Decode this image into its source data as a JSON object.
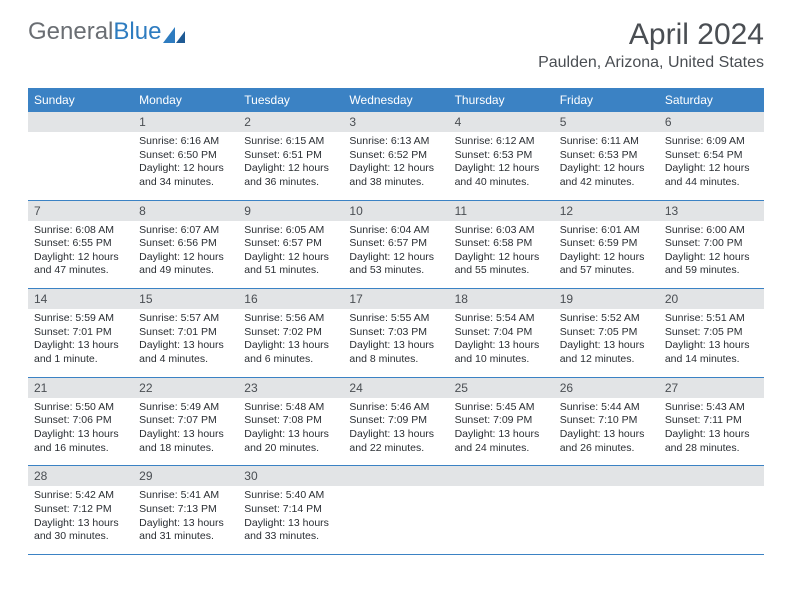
{
  "logo": {
    "part1": "General",
    "part2": "Blue"
  },
  "title": "April 2024",
  "location": "Paulden, Arizona, United States",
  "colors": {
    "header_bg": "#3b82c4",
    "header_text": "#ffffff",
    "daynum_bg": "#e2e4e6",
    "text": "#2a2e33",
    "title_text": "#4a4e53",
    "logo_gray": "#6a6e73",
    "logo_blue": "#2e7cc0",
    "divider": "#3b82c4"
  },
  "day_headers": [
    "Sunday",
    "Monday",
    "Tuesday",
    "Wednesday",
    "Thursday",
    "Friday",
    "Saturday"
  ],
  "weeks": [
    [
      {
        "num": "",
        "sunrise": "",
        "sunset": "",
        "daylight": ""
      },
      {
        "num": "1",
        "sunrise": "Sunrise: 6:16 AM",
        "sunset": "Sunset: 6:50 PM",
        "daylight": "Daylight: 12 hours and 34 minutes."
      },
      {
        "num": "2",
        "sunrise": "Sunrise: 6:15 AM",
        "sunset": "Sunset: 6:51 PM",
        "daylight": "Daylight: 12 hours and 36 minutes."
      },
      {
        "num": "3",
        "sunrise": "Sunrise: 6:13 AM",
        "sunset": "Sunset: 6:52 PM",
        "daylight": "Daylight: 12 hours and 38 minutes."
      },
      {
        "num": "4",
        "sunrise": "Sunrise: 6:12 AM",
        "sunset": "Sunset: 6:53 PM",
        "daylight": "Daylight: 12 hours and 40 minutes."
      },
      {
        "num": "5",
        "sunrise": "Sunrise: 6:11 AM",
        "sunset": "Sunset: 6:53 PM",
        "daylight": "Daylight: 12 hours and 42 minutes."
      },
      {
        "num": "6",
        "sunrise": "Sunrise: 6:09 AM",
        "sunset": "Sunset: 6:54 PM",
        "daylight": "Daylight: 12 hours and 44 minutes."
      }
    ],
    [
      {
        "num": "7",
        "sunrise": "Sunrise: 6:08 AM",
        "sunset": "Sunset: 6:55 PM",
        "daylight": "Daylight: 12 hours and 47 minutes."
      },
      {
        "num": "8",
        "sunrise": "Sunrise: 6:07 AM",
        "sunset": "Sunset: 6:56 PM",
        "daylight": "Daylight: 12 hours and 49 minutes."
      },
      {
        "num": "9",
        "sunrise": "Sunrise: 6:05 AM",
        "sunset": "Sunset: 6:57 PM",
        "daylight": "Daylight: 12 hours and 51 minutes."
      },
      {
        "num": "10",
        "sunrise": "Sunrise: 6:04 AM",
        "sunset": "Sunset: 6:57 PM",
        "daylight": "Daylight: 12 hours and 53 minutes."
      },
      {
        "num": "11",
        "sunrise": "Sunrise: 6:03 AM",
        "sunset": "Sunset: 6:58 PM",
        "daylight": "Daylight: 12 hours and 55 minutes."
      },
      {
        "num": "12",
        "sunrise": "Sunrise: 6:01 AM",
        "sunset": "Sunset: 6:59 PM",
        "daylight": "Daylight: 12 hours and 57 minutes."
      },
      {
        "num": "13",
        "sunrise": "Sunrise: 6:00 AM",
        "sunset": "Sunset: 7:00 PM",
        "daylight": "Daylight: 12 hours and 59 minutes."
      }
    ],
    [
      {
        "num": "14",
        "sunrise": "Sunrise: 5:59 AM",
        "sunset": "Sunset: 7:01 PM",
        "daylight": "Daylight: 13 hours and 1 minute."
      },
      {
        "num": "15",
        "sunrise": "Sunrise: 5:57 AM",
        "sunset": "Sunset: 7:01 PM",
        "daylight": "Daylight: 13 hours and 4 minutes."
      },
      {
        "num": "16",
        "sunrise": "Sunrise: 5:56 AM",
        "sunset": "Sunset: 7:02 PM",
        "daylight": "Daylight: 13 hours and 6 minutes."
      },
      {
        "num": "17",
        "sunrise": "Sunrise: 5:55 AM",
        "sunset": "Sunset: 7:03 PM",
        "daylight": "Daylight: 13 hours and 8 minutes."
      },
      {
        "num": "18",
        "sunrise": "Sunrise: 5:54 AM",
        "sunset": "Sunset: 7:04 PM",
        "daylight": "Daylight: 13 hours and 10 minutes."
      },
      {
        "num": "19",
        "sunrise": "Sunrise: 5:52 AM",
        "sunset": "Sunset: 7:05 PM",
        "daylight": "Daylight: 13 hours and 12 minutes."
      },
      {
        "num": "20",
        "sunrise": "Sunrise: 5:51 AM",
        "sunset": "Sunset: 7:05 PM",
        "daylight": "Daylight: 13 hours and 14 minutes."
      }
    ],
    [
      {
        "num": "21",
        "sunrise": "Sunrise: 5:50 AM",
        "sunset": "Sunset: 7:06 PM",
        "daylight": "Daylight: 13 hours and 16 minutes."
      },
      {
        "num": "22",
        "sunrise": "Sunrise: 5:49 AM",
        "sunset": "Sunset: 7:07 PM",
        "daylight": "Daylight: 13 hours and 18 minutes."
      },
      {
        "num": "23",
        "sunrise": "Sunrise: 5:48 AM",
        "sunset": "Sunset: 7:08 PM",
        "daylight": "Daylight: 13 hours and 20 minutes."
      },
      {
        "num": "24",
        "sunrise": "Sunrise: 5:46 AM",
        "sunset": "Sunset: 7:09 PM",
        "daylight": "Daylight: 13 hours and 22 minutes."
      },
      {
        "num": "25",
        "sunrise": "Sunrise: 5:45 AM",
        "sunset": "Sunset: 7:09 PM",
        "daylight": "Daylight: 13 hours and 24 minutes."
      },
      {
        "num": "26",
        "sunrise": "Sunrise: 5:44 AM",
        "sunset": "Sunset: 7:10 PM",
        "daylight": "Daylight: 13 hours and 26 minutes."
      },
      {
        "num": "27",
        "sunrise": "Sunrise: 5:43 AM",
        "sunset": "Sunset: 7:11 PM",
        "daylight": "Daylight: 13 hours and 28 minutes."
      }
    ],
    [
      {
        "num": "28",
        "sunrise": "Sunrise: 5:42 AM",
        "sunset": "Sunset: 7:12 PM",
        "daylight": "Daylight: 13 hours and 30 minutes."
      },
      {
        "num": "29",
        "sunrise": "Sunrise: 5:41 AM",
        "sunset": "Sunset: 7:13 PM",
        "daylight": "Daylight: 13 hours and 31 minutes."
      },
      {
        "num": "30",
        "sunrise": "Sunrise: 5:40 AM",
        "sunset": "Sunset: 7:14 PM",
        "daylight": "Daylight: 13 hours and 33 minutes."
      },
      {
        "num": "",
        "sunrise": "",
        "sunset": "",
        "daylight": ""
      },
      {
        "num": "",
        "sunrise": "",
        "sunset": "",
        "daylight": ""
      },
      {
        "num": "",
        "sunrise": "",
        "sunset": "",
        "daylight": ""
      },
      {
        "num": "",
        "sunrise": "",
        "sunset": "",
        "daylight": ""
      }
    ]
  ]
}
